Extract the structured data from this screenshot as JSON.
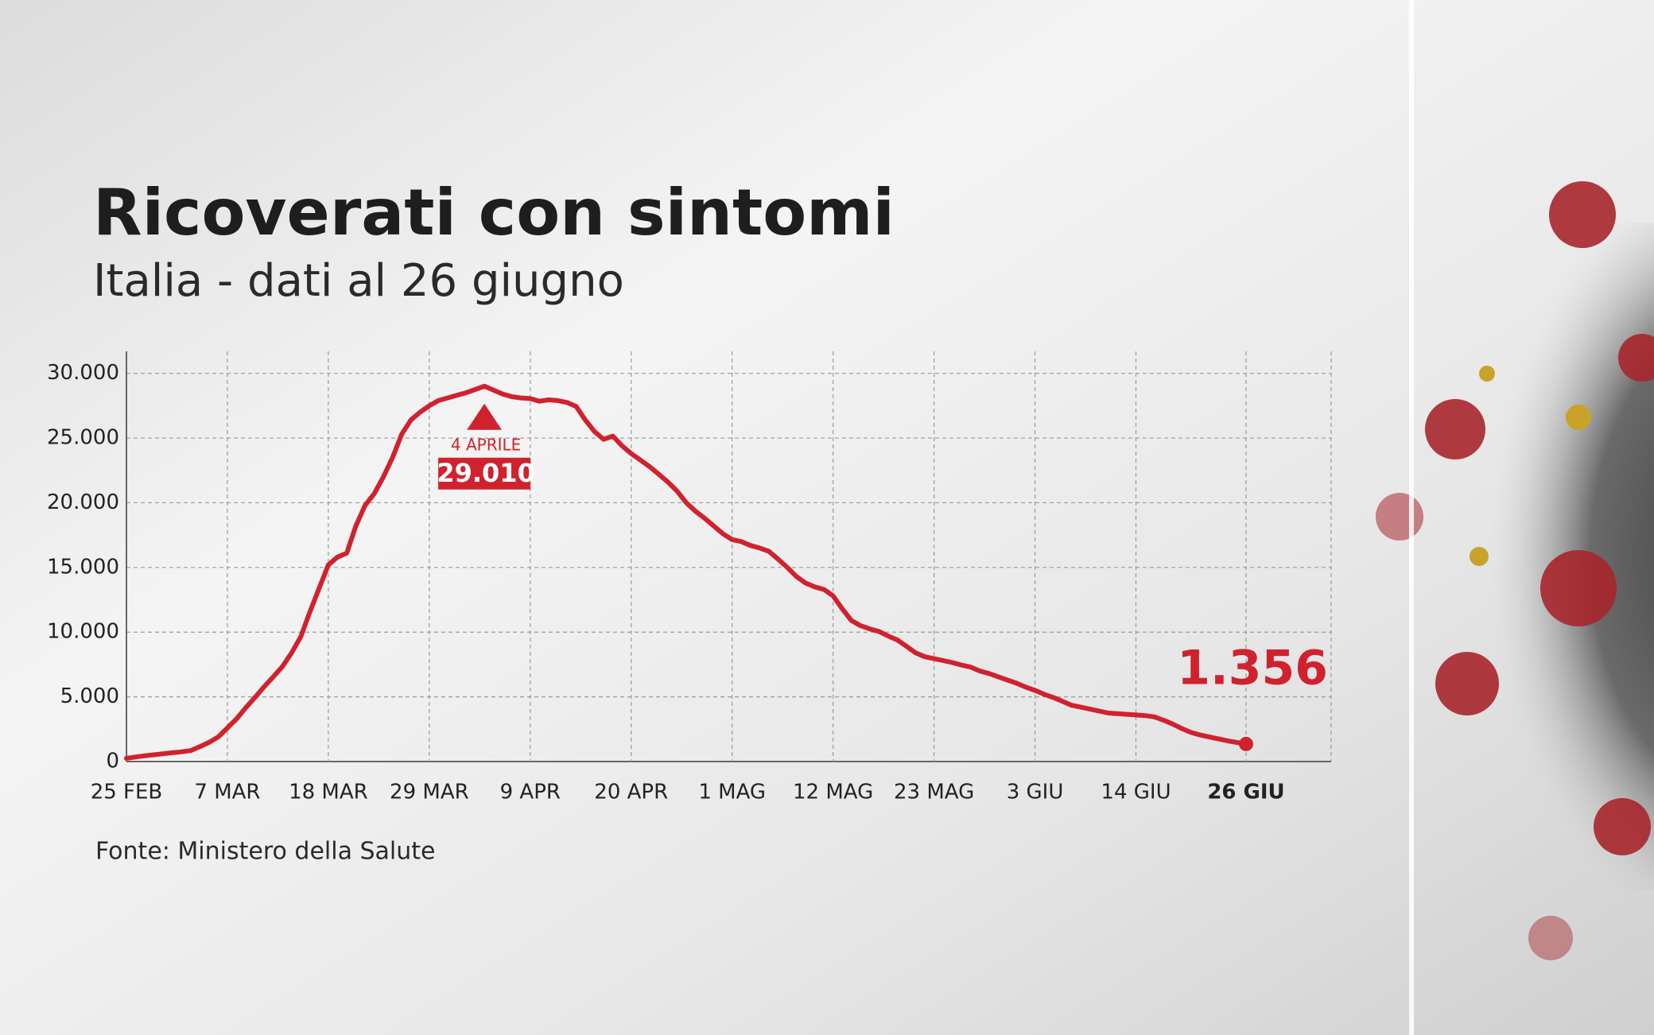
{
  "chart_data": {
    "type": "line",
    "title": "Ricoverati con sintomi",
    "subtitle": "Italia - dati al 26 giugno",
    "source": "Fonte: Ministero della Salute",
    "peak_annotation": "4 APRILE",
    "color": "#d0222e",
    "grid": true,
    "ylim": [
      0,
      31700
    ],
    "yticks": [
      0,
      {
        "value": 5000,
        "label": "5.000"
      },
      {
        "value": 10000,
        "label": "10.000"
      },
      {
        "value": 15000,
        "label": "15.000"
      },
      {
        "value": 20000,
        "label": "20.000"
      },
      {
        "value": 25000,
        "label": "25.000"
      },
      {
        "value": 30000,
        "label": "30.000"
      }
    ],
    "categories": [
      "25 FEB",
      null,
      null,
      null,
      null,
      null,
      null,
      null,
      null,
      null,
      null,
      "7 MAR",
      null,
      null,
      null,
      null,
      null,
      null,
      null,
      null,
      null,
      null,
      "18 MAR",
      null,
      null,
      null,
      null,
      null,
      null,
      null,
      null,
      null,
      null,
      "29 MAR",
      null,
      null,
      null,
      null,
      null,
      null,
      null,
      null,
      null,
      null,
      "9 APR",
      null,
      null,
      null,
      null,
      null,
      null,
      null,
      null,
      null,
      null,
      "20 APR",
      null,
      null,
      null,
      null,
      null,
      null,
      null,
      null,
      null,
      null,
      "1 MAG",
      null,
      null,
      null,
      null,
      null,
      null,
      null,
      null,
      null,
      null,
      "12 MAG",
      null,
      null,
      null,
      null,
      null,
      null,
      null,
      null,
      null,
      null,
      "23 MAG",
      null,
      null,
      null,
      null,
      null,
      null,
      null,
      null,
      null,
      null,
      "3 GIU",
      null,
      null,
      null,
      null,
      null,
      null,
      null,
      null,
      null,
      null,
      "14 GIU",
      null,
      null,
      null,
      null,
      null,
      null,
      null,
      null,
      null,
      null,
      null,
      "26 GIU"
    ],
    "values": [
      250,
      350,
      450,
      520,
      600,
      680,
      750,
      850,
      1150,
      1480,
      1900,
      2600,
      3300,
      4150,
      4950,
      5780,
      6550,
      7350,
      8400,
      9650,
      11580,
      13400,
      15200,
      15800,
      16100,
      18200,
      19800,
      20700,
      22000,
      23500,
      25300,
      26400,
      27000,
      27500,
      27900,
      28100,
      28300,
      28500,
      28750,
      29010,
      28700,
      28400,
      28200,
      28100,
      28050,
      27850,
      27950,
      27900,
      27750,
      27450,
      26400,
      25500,
      24900,
      25150,
      24400,
      23800,
      23300,
      22800,
      22200,
      21600,
      20900,
      20000,
      19350,
      18800,
      18200,
      17600,
      17150,
      17000,
      16700,
      16500,
      16250,
      15650,
      15000,
      14300,
      13800,
      13500,
      13300,
      12800,
      11800,
      10900,
      10500,
      10250,
      10050,
      9700,
      9400,
      8900,
      8400,
      8100,
      7950,
      7800,
      7650,
      7450,
      7300,
      7000,
      6800,
      6550,
      6300,
      6050,
      5750,
      5500,
      5200,
      4950,
      4650,
      4350,
      4200,
      4050,
      3900,
      3750,
      3700,
      3650,
      3600,
      3550,
      3450,
      3200,
      2900,
      2550,
      2250,
      2050,
      1900,
      1750,
      1600,
      1480,
      1356
    ],
    "value_labels": [
      null,
      null,
      null,
      null,
      null,
      null,
      null,
      null,
      null,
      null,
      null,
      null,
      null,
      null,
      null,
      null,
      null,
      null,
      null,
      null,
      null,
      null,
      null,
      null,
      null,
      null,
      null,
      null,
      null,
      null,
      null,
      null,
      null,
      null,
      null,
      null,
      null,
      null,
      null,
      "29.010",
      null,
      null,
      null,
      null,
      null,
      null,
      null,
      null,
      null,
      null,
      null,
      null,
      null,
      null,
      null,
      null,
      null,
      null,
      null,
      null,
      null,
      null,
      null,
      null,
      null,
      null,
      null,
      null,
      null,
      null,
      null,
      null,
      null,
      null,
      null,
      null,
      null,
      null,
      null,
      null,
      null,
      null,
      null,
      null,
      null,
      null,
      null,
      null,
      null,
      null,
      null,
      null,
      null,
      null,
      null,
      null,
      null,
      null,
      null,
      null,
      null,
      null,
      null,
      null,
      null,
      null,
      null,
      null,
      null,
      null,
      null,
      null,
      null,
      null,
      null,
      null,
      null,
      null,
      null,
      null,
      null,
      null,
      "1.356"
    ]
  }
}
